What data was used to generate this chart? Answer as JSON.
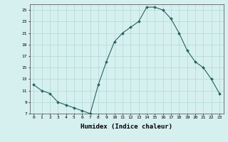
{
  "x": [
    0,
    1,
    2,
    3,
    4,
    5,
    6,
    7,
    8,
    9,
    10,
    11,
    12,
    13,
    14,
    15,
    16,
    17,
    18,
    19,
    20,
    21,
    22,
    23
  ],
  "y": [
    12.0,
    11.0,
    10.5,
    9.0,
    8.5,
    8.0,
    7.5,
    7.0,
    12.0,
    16.0,
    19.5,
    21.0,
    22.0,
    23.0,
    25.5,
    25.5,
    25.0,
    23.5,
    21.0,
    18.0,
    16.0,
    15.0,
    13.0,
    10.5
  ],
  "xlabel": "Humidex (Indice chaleur)",
  "bg_color": "#d6f0f0",
  "grid_color": "#b0d8d8",
  "line_color": "#2a6060",
  "marker_color": "#2a6060",
  "xlim": [
    -0.5,
    23.5
  ],
  "ylim": [
    7,
    26
  ],
  "yticks": [
    7,
    9,
    11,
    13,
    15,
    17,
    19,
    21,
    23,
    25
  ],
  "xticks": [
    0,
    1,
    2,
    3,
    4,
    5,
    6,
    7,
    8,
    9,
    10,
    11,
    12,
    13,
    14,
    15,
    16,
    17,
    18,
    19,
    20,
    21,
    22,
    23
  ]
}
